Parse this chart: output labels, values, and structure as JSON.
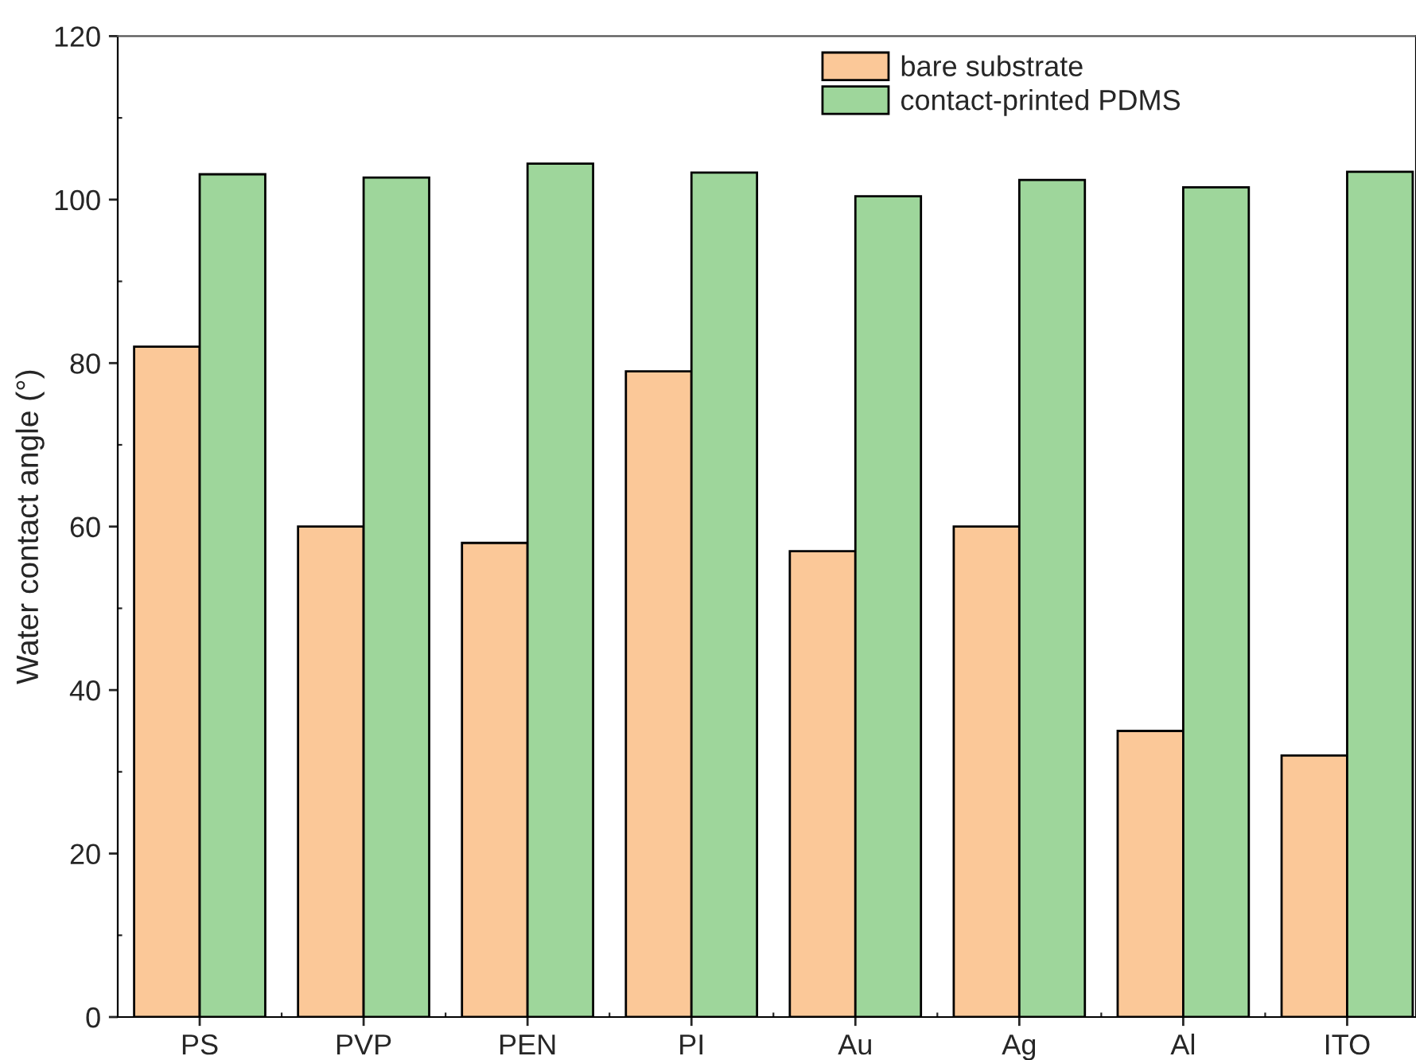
{
  "chart_data": {
    "type": "bar",
    "ylabel": "Water contact angle (°)",
    "categories": [
      "PS",
      "PVP",
      "PEN",
      "PI",
      "Au",
      "Ag",
      "Al",
      "ITO"
    ],
    "series": [
      {
        "name": "bare substrate",
        "color": "#fbc898",
        "values": [
          82,
          60,
          58,
          79,
          57,
          60,
          35,
          32
        ]
      },
      {
        "name": "contact-printed PDMS",
        "color": "#9ed69b",
        "values": [
          103.1,
          102.7,
          104.4,
          103.3,
          100.4,
          102.4,
          101.5,
          103.4
        ]
      }
    ],
    "ylim": [
      0,
      120
    ],
    "yticks": [
      0,
      20,
      40,
      60,
      80,
      100,
      120
    ],
    "grid": false,
    "legend": "top right"
  }
}
